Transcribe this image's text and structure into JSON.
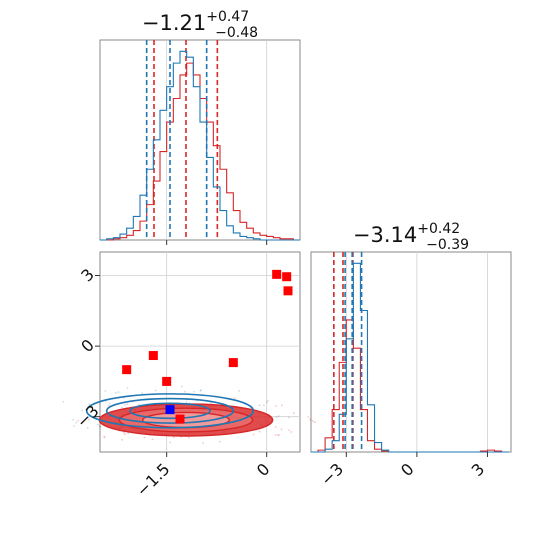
{
  "colors": {
    "series_a": "#d62728",
    "series_b": "#1f77b4",
    "marker_a": "#ff0000",
    "marker_b": "#0000ff"
  },
  "chart_data": [
    {
      "type": "histogram",
      "panel": "marginal-param-1",
      "title": {
        "median": "−1.21",
        "upper": "+0.47",
        "lower": "−0.48"
      },
      "xlim": [
        -2.5,
        0.5
      ],
      "xticks": [
        -1.5,
        0.0
      ],
      "series": [
        {
          "color": "series_a",
          "x": [
            -2.5,
            -2.4,
            -2.3,
            -2.2,
            -2.1,
            -2.0,
            -1.9,
            -1.8,
            -1.7,
            -1.6,
            -1.5,
            -1.4,
            -1.3,
            -1.2,
            -1.1,
            -1.0,
            -0.9,
            -0.8,
            -0.7,
            -0.6,
            -0.5,
            -0.4,
            -0.3,
            -0.2,
            -0.1,
            0.0,
            0.1,
            0.2,
            0.3,
            0.4,
            0.5
          ],
          "counts": [
            0,
            0,
            1,
            2,
            4,
            8,
            16,
            30,
            50,
            75,
            100,
            120,
            140,
            150,
            140,
            120,
            100,
            80,
            60,
            40,
            25,
            15,
            10,
            6,
            4,
            3,
            2,
            1,
            1,
            0
          ],
          "quantiles": [
            -1.69,
            -1.21,
            -0.74
          ]
        },
        {
          "color": "series_b",
          "x": [
            -2.5,
            -2.4,
            -2.3,
            -2.2,
            -2.1,
            -2.0,
            -1.9,
            -1.8,
            -1.7,
            -1.6,
            -1.5,
            -1.4,
            -1.3,
            -1.2,
            -1.1,
            -1.0,
            -0.9,
            -0.8,
            -0.7,
            -0.6,
            -0.5,
            -0.4,
            -0.3,
            -0.2,
            -0.1,
            0.0,
            0.1,
            0.2,
            0.3,
            0.4,
            0.5
          ],
          "counts": [
            0,
            1,
            2,
            5,
            10,
            20,
            38,
            60,
            85,
            110,
            130,
            150,
            160,
            155,
            130,
            100,
            70,
            45,
            25,
            12,
            6,
            3,
            2,
            1,
            0,
            0,
            0,
            0,
            0,
            0
          ],
          "quantiles": [
            -1.8,
            -1.45,
            -0.9
          ]
        }
      ]
    },
    {
      "type": "contour-scatter",
      "panel": "joint-param-1-param-2",
      "xlim": [
        -2.5,
        0.5
      ],
      "ylim": [
        -4.5,
        4.0
      ],
      "xticks": [
        -1.5,
        0.0
      ],
      "yticks": [
        -3,
        0,
        3
      ],
      "contours": [
        {
          "color": "series_a",
          "center": [
            -1.21,
            -3.14
          ],
          "levels": [
            [
              0.65,
              0.32
            ],
            [
              1.0,
              0.5
            ],
            [
              1.3,
              0.68
            ]
          ]
        },
        {
          "color": "series_b",
          "center": [
            -1.45,
            -2.75
          ],
          "levels": [
            [
              0.6,
              0.32
            ],
            [
              0.95,
              0.52
            ],
            [
              1.25,
              0.72
            ]
          ]
        }
      ],
      "markers": [
        {
          "color": "marker_a",
          "x": -2.1,
          "y": -1.0
        },
        {
          "color": "marker_a",
          "x": -1.7,
          "y": -0.4
        },
        {
          "color": "marker_a",
          "x": -1.5,
          "y": -1.5
        },
        {
          "color": "marker_a",
          "x": -0.5,
          "y": -0.7
        },
        {
          "color": "marker_a",
          "x": 0.15,
          "y": 3.05
        },
        {
          "color": "marker_a",
          "x": 0.3,
          "y": 2.95
        },
        {
          "color": "marker_a",
          "x": 0.32,
          "y": 2.35
        },
        {
          "color": "marker_a",
          "x": -1.3,
          "y": -3.1
        },
        {
          "color": "marker_b",
          "x": -1.45,
          "y": -2.7
        }
      ]
    },
    {
      "type": "histogram",
      "panel": "marginal-param-2",
      "title": {
        "median": "−3.14",
        "upper": "+0.42",
        "lower": "−0.39"
      },
      "xlim": [
        -4.5,
        4.0
      ],
      "xticks": [
        -3,
        0,
        3
      ],
      "series": [
        {
          "color": "series_a",
          "x": [
            -4.5,
            -4.2,
            -3.9,
            -3.6,
            -3.3,
            -3.0,
            -2.7,
            -2.4,
            -2.1,
            -1.8,
            -1.5,
            -1.2,
            -0.9,
            -0.6,
            -0.3,
            0.0,
            0.3,
            0.6,
            0.9,
            1.2,
            1.5,
            1.8,
            2.1,
            2.4,
            2.7,
            3.0,
            3.3,
            3.6,
            3.9
          ],
          "counts": [
            0,
            2,
            15,
            45,
            95,
            140,
            110,
            45,
            12,
            3,
            1,
            0,
            0,
            0,
            0,
            0,
            0,
            0,
            0,
            0,
            0,
            0,
            0,
            0,
            1,
            2,
            1,
            0
          ],
          "quantiles": [
            -3.53,
            -3.14,
            -2.72
          ]
        },
        {
          "color": "series_b",
          "x": [
            -4.5,
            -4.2,
            -3.9,
            -3.6,
            -3.3,
            -3.0,
            -2.7,
            -2.4,
            -2.1,
            -1.8,
            -1.5,
            -1.2,
            -0.9,
            -0.6,
            -0.3,
            0.0,
            0.3,
            0.6,
            0.9,
            1.2,
            1.5,
            1.8,
            2.1,
            2.4,
            2.7,
            3.0,
            3.3,
            3.6,
            3.9
          ],
          "counts": [
            0,
            0,
            3,
            12,
            40,
            120,
            200,
            150,
            50,
            10,
            2,
            0,
            0,
            0,
            0,
            0,
            0,
            0,
            0,
            0,
            0,
            0,
            0,
            0,
            0,
            0,
            0,
            0
          ],
          "quantiles": [
            -3.05,
            -2.75,
            -2.35
          ]
        }
      ]
    }
  ]
}
